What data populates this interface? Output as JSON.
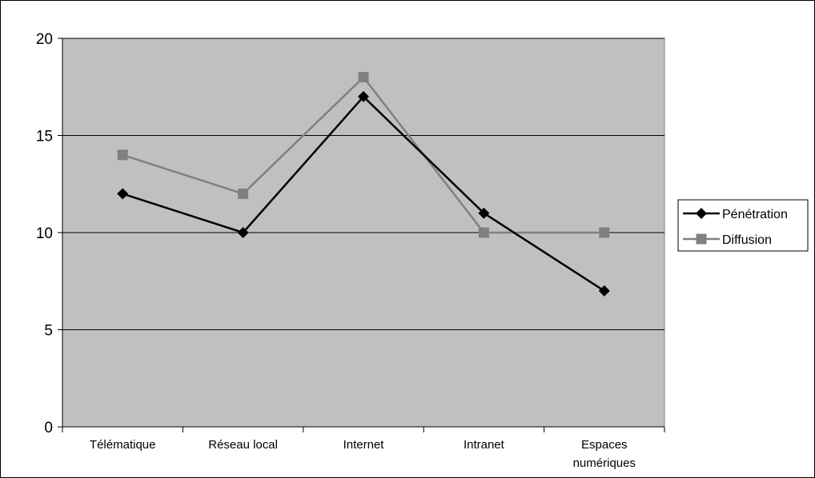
{
  "chart_data": {
    "type": "line",
    "categories": [
      [
        "Télématique"
      ],
      [
        "Réseau local"
      ],
      [
        "Internet"
      ],
      [
        "Intranet"
      ],
      [
        "Espaces",
        "numériques"
      ]
    ],
    "series": [
      {
        "name": "Pénétration",
        "values": [
          12,
          10,
          17,
          11,
          7
        ],
        "color": "#000000",
        "marker": "diamond"
      },
      {
        "name": "Diffusion",
        "values": [
          14,
          12,
          18,
          10,
          10
        ],
        "color": "#808080",
        "marker": "square"
      }
    ],
    "ylim": [
      0,
      20
    ],
    "yticks": [
      0,
      5,
      10,
      15,
      20
    ],
    "grid": true,
    "plot_background": "#c0c0c0",
    "legend": "right"
  }
}
